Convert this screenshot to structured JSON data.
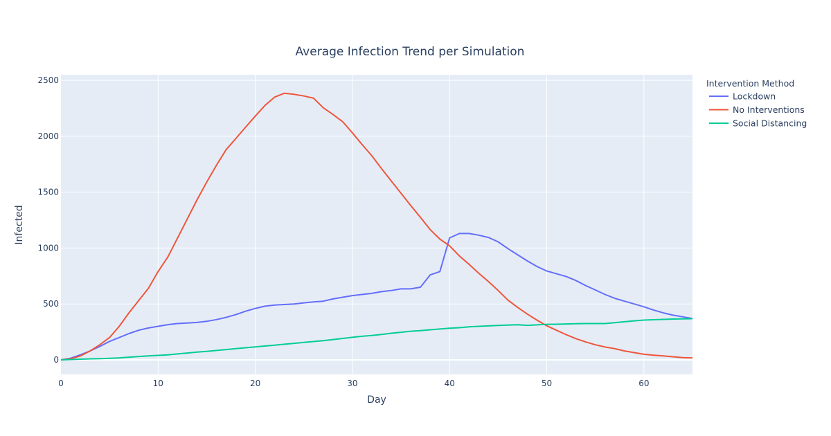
{
  "chart_data": {
    "type": "line",
    "title": "Average Infection Trend per Simulation",
    "xlabel": "Day",
    "ylabel": "Infected",
    "xlim": [
      0,
      65
    ],
    "ylim": [
      -130,
      2550
    ],
    "x_ticks": [
      0,
      10,
      20,
      30,
      40,
      50,
      60
    ],
    "y_ticks": [
      0,
      500,
      1000,
      1500,
      2000,
      2500
    ],
    "grid": true,
    "legend": {
      "title": "Intervention Method",
      "placement": "right"
    },
    "series": [
      {
        "name": "Lockdown",
        "color": "#636efa",
        "points": [
          [
            0,
            0
          ],
          [
            1,
            15
          ],
          [
            2,
            45
          ],
          [
            3,
            80
          ],
          [
            4,
            120
          ],
          [
            5,
            165
          ],
          [
            6,
            200
          ],
          [
            7,
            235
          ],
          [
            8,
            265
          ],
          [
            9,
            285
          ],
          [
            10,
            300
          ],
          [
            11,
            315
          ],
          [
            12,
            325
          ],
          [
            13,
            330
          ],
          [
            14,
            335
          ],
          [
            15,
            345
          ],
          [
            16,
            360
          ],
          [
            17,
            380
          ],
          [
            18,
            405
          ],
          [
            19,
            435
          ],
          [
            20,
            460
          ],
          [
            21,
            480
          ],
          [
            22,
            490
          ],
          [
            23,
            495
          ],
          [
            24,
            500
          ],
          [
            25,
            510
          ],
          [
            26,
            518
          ],
          [
            27,
            525
          ],
          [
            28,
            545
          ],
          [
            29,
            560
          ],
          [
            30,
            575
          ],
          [
            31,
            585
          ],
          [
            32,
            595
          ],
          [
            33,
            610
          ],
          [
            34,
            620
          ],
          [
            35,
            635
          ],
          [
            36,
            635
          ],
          [
            37,
            650
          ],
          [
            38,
            760
          ],
          [
            39,
            790
          ],
          [
            40,
            1090
          ],
          [
            41,
            1130
          ],
          [
            42,
            1130
          ],
          [
            43,
            1115
          ],
          [
            44,
            1095
          ],
          [
            45,
            1055
          ],
          [
            46,
            995
          ],
          [
            47,
            940
          ],
          [
            48,
            885
          ],
          [
            49,
            835
          ],
          [
            50,
            795
          ],
          [
            51,
            770
          ],
          [
            52,
            745
          ],
          [
            53,
            710
          ],
          [
            54,
            665
          ],
          [
            55,
            625
          ],
          [
            56,
            585
          ],
          [
            57,
            550
          ],
          [
            58,
            525
          ],
          [
            59,
            500
          ],
          [
            60,
            475
          ],
          [
            61,
            445
          ],
          [
            62,
            420
          ],
          [
            63,
            400
          ],
          [
            64,
            385
          ],
          [
            65,
            370
          ]
        ]
      },
      {
        "name": "No Interventions",
        "color": "#ef553b",
        "points": [
          [
            0,
            0
          ],
          [
            1,
            10
          ],
          [
            2,
            35
          ],
          [
            3,
            80
          ],
          [
            4,
            135
          ],
          [
            5,
            200
          ],
          [
            6,
            300
          ],
          [
            7,
            420
          ],
          [
            8,
            530
          ],
          [
            9,
            640
          ],
          [
            10,
            790
          ],
          [
            11,
            920
          ],
          [
            12,
            1090
          ],
          [
            13,
            1260
          ],
          [
            14,
            1430
          ],
          [
            15,
            1590
          ],
          [
            16,
            1740
          ],
          [
            17,
            1880
          ],
          [
            18,
            1980
          ],
          [
            19,
            2080
          ],
          [
            20,
            2180
          ],
          [
            21,
            2275
          ],
          [
            22,
            2350
          ],
          [
            23,
            2385
          ],
          [
            24,
            2375
          ],
          [
            25,
            2360
          ],
          [
            26,
            2340
          ],
          [
            27,
            2255
          ],
          [
            28,
            2195
          ],
          [
            29,
            2130
          ],
          [
            30,
            2030
          ],
          [
            31,
            1925
          ],
          [
            32,
            1825
          ],
          [
            33,
            1710
          ],
          [
            34,
            1600
          ],
          [
            35,
            1490
          ],
          [
            36,
            1380
          ],
          [
            37,
            1275
          ],
          [
            38,
            1165
          ],
          [
            39,
            1080
          ],
          [
            40,
            1020
          ],
          [
            41,
            930
          ],
          [
            42,
            855
          ],
          [
            43,
            775
          ],
          [
            44,
            700
          ],
          [
            45,
            620
          ],
          [
            46,
            535
          ],
          [
            47,
            470
          ],
          [
            48,
            410
          ],
          [
            49,
            355
          ],
          [
            50,
            305
          ],
          [
            51,
            265
          ],
          [
            52,
            225
          ],
          [
            53,
            190
          ],
          [
            54,
            160
          ],
          [
            55,
            135
          ],
          [
            56,
            115
          ],
          [
            57,
            100
          ],
          [
            58,
            80
          ],
          [
            59,
            65
          ],
          [
            60,
            50
          ],
          [
            61,
            42
          ],
          [
            62,
            35
          ],
          [
            63,
            28
          ],
          [
            64,
            20
          ],
          [
            65,
            18
          ]
        ]
      },
      {
        "name": "Social Distancing",
        "color": "#00cc96",
        "points": [
          [
            0,
            0
          ],
          [
            1,
            3
          ],
          [
            2,
            6
          ],
          [
            3,
            9
          ],
          [
            4,
            11
          ],
          [
            5,
            14
          ],
          [
            6,
            18
          ],
          [
            7,
            24
          ],
          [
            8,
            30
          ],
          [
            9,
            35
          ],
          [
            10,
            40
          ],
          [
            11,
            45
          ],
          [
            12,
            53
          ],
          [
            13,
            61
          ],
          [
            14,
            69
          ],
          [
            15,
            76
          ],
          [
            16,
            84
          ],
          [
            17,
            92
          ],
          [
            18,
            100
          ],
          [
            19,
            108
          ],
          [
            20,
            116
          ],
          [
            21,
            124
          ],
          [
            22,
            132
          ],
          [
            23,
            140
          ],
          [
            24,
            148
          ],
          [
            25,
            156
          ],
          [
            26,
            164
          ],
          [
            27,
            172
          ],
          [
            28,
            182
          ],
          [
            29,
            192
          ],
          [
            30,
            202
          ],
          [
            31,
            211
          ],
          [
            32,
            218
          ],
          [
            33,
            228
          ],
          [
            34,
            238
          ],
          [
            35,
            247
          ],
          [
            36,
            256
          ],
          [
            37,
            262
          ],
          [
            38,
            269
          ],
          [
            39,
            276
          ],
          [
            40,
            283
          ],
          [
            41,
            288
          ],
          [
            42,
            296
          ],
          [
            43,
            300
          ],
          [
            44,
            304
          ],
          [
            45,
            308
          ],
          [
            46,
            311
          ],
          [
            47,
            314
          ],
          [
            48,
            309
          ],
          [
            49,
            313
          ],
          [
            50,
            318
          ],
          [
            51,
            319
          ],
          [
            52,
            321
          ],
          [
            53,
            323
          ],
          [
            54,
            325
          ],
          [
            55,
            325
          ],
          [
            56,
            325
          ],
          [
            57,
            333
          ],
          [
            58,
            341
          ],
          [
            59,
            349
          ],
          [
            60,
            356
          ],
          [
            61,
            359
          ],
          [
            62,
            362
          ],
          [
            63,
            365
          ],
          [
            64,
            367
          ],
          [
            65,
            368
          ]
        ]
      }
    ]
  }
}
